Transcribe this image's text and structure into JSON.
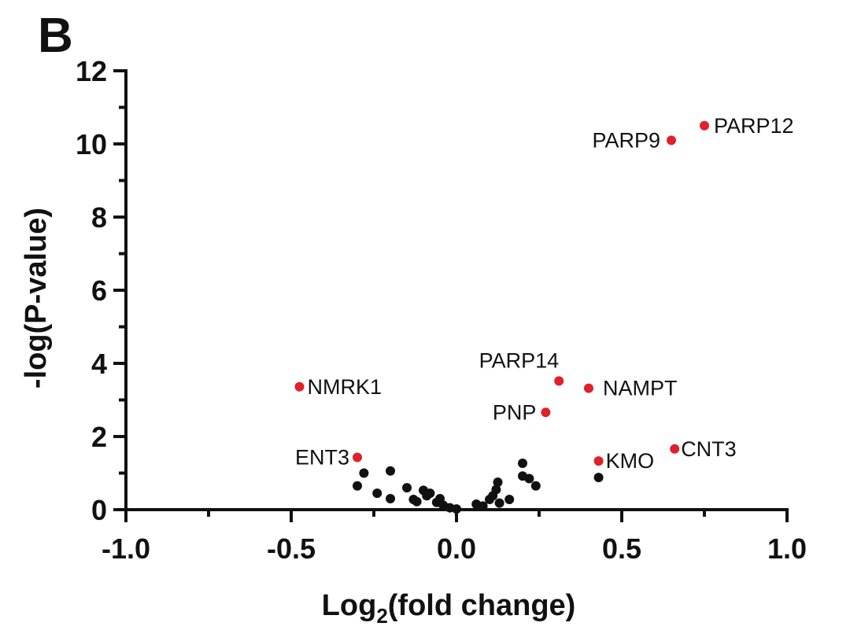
{
  "panel_letter": "B",
  "colors": {
    "highlight": "#e0202a",
    "base": "#111111"
  },
  "chart_data": {
    "type": "scatter",
    "xlabel": {
      "main": "Log",
      "sub": "2",
      "rest": "(fold change)"
    },
    "ylabel": "-log(P-value)",
    "xlim": [
      -1.0,
      1.0
    ],
    "ylim": [
      0,
      12
    ],
    "xticks": [
      -1.0,
      -0.5,
      0.0,
      0.5,
      1.0
    ],
    "xtick_labels": [
      "-1.0",
      "-0.5",
      "0.0",
      "0.5",
      "1.0"
    ],
    "yticks": [
      0,
      2,
      4,
      6,
      8,
      10,
      12
    ],
    "ytick_labels": [
      "0",
      "2",
      "4",
      "6",
      "8",
      "10",
      "12"
    ],
    "grid": false,
    "series": [
      {
        "points": [
          {
            "x": 0.75,
            "y": 10.5,
            "label": "PARP12"
          },
          {
            "x": 0.65,
            "y": 10.1,
            "label": "PARP9"
          },
          {
            "x": 0.31,
            "y": 3.52,
            "label": "PARP14"
          },
          {
            "x": 0.4,
            "y": 3.32,
            "label": "NAMPT"
          },
          {
            "x": 0.27,
            "y": 2.66,
            "label": "PNP"
          },
          {
            "x": -0.475,
            "y": 3.36,
            "label": "NMRK1"
          },
          {
            "x": -0.3,
            "y": 1.43,
            "label": "ENT3"
          },
          {
            "x": 0.43,
            "y": 1.33,
            "label": "KMO"
          },
          {
            "x": 0.66,
            "y": 1.66,
            "label": "CNT3"
          }
        ]
      },
      {
        "points": [
          {
            "x": 0.43,
            "y": 0.88
          },
          {
            "x": -0.28,
            "y": 1.0
          },
          {
            "x": -0.3,
            "y": 0.65
          },
          {
            "x": -0.2,
            "y": 1.06
          },
          {
            "x": -0.24,
            "y": 0.45
          },
          {
            "x": -0.2,
            "y": 0.3
          },
          {
            "x": -0.15,
            "y": 0.6
          },
          {
            "x": -0.13,
            "y": 0.28
          },
          {
            "x": -0.12,
            "y": 0.22
          },
          {
            "x": -0.1,
            "y": 0.53
          },
          {
            "x": -0.09,
            "y": 0.38
          },
          {
            "x": -0.08,
            "y": 0.45
          },
          {
            "x": -0.06,
            "y": 0.2
          },
          {
            "x": -0.05,
            "y": 0.3
          },
          {
            "x": -0.04,
            "y": 0.12
          },
          {
            "x": -0.02,
            "y": 0.05
          },
          {
            "x": 0.0,
            "y": 0.02
          },
          {
            "x": 0.06,
            "y": 0.15
          },
          {
            "x": 0.08,
            "y": 0.1
          },
          {
            "x": 0.1,
            "y": 0.28
          },
          {
            "x": 0.11,
            "y": 0.38
          },
          {
            "x": 0.12,
            "y": 0.55
          },
          {
            "x": 0.125,
            "y": 0.75
          },
          {
            "x": 0.13,
            "y": 0.18
          },
          {
            "x": 0.16,
            "y": 0.28
          },
          {
            "x": 0.2,
            "y": 0.92
          },
          {
            "x": 0.2,
            "y": 1.27
          },
          {
            "x": 0.22,
            "y": 0.85
          },
          {
            "x": 0.24,
            "y": 0.65
          }
        ]
      }
    ]
  }
}
